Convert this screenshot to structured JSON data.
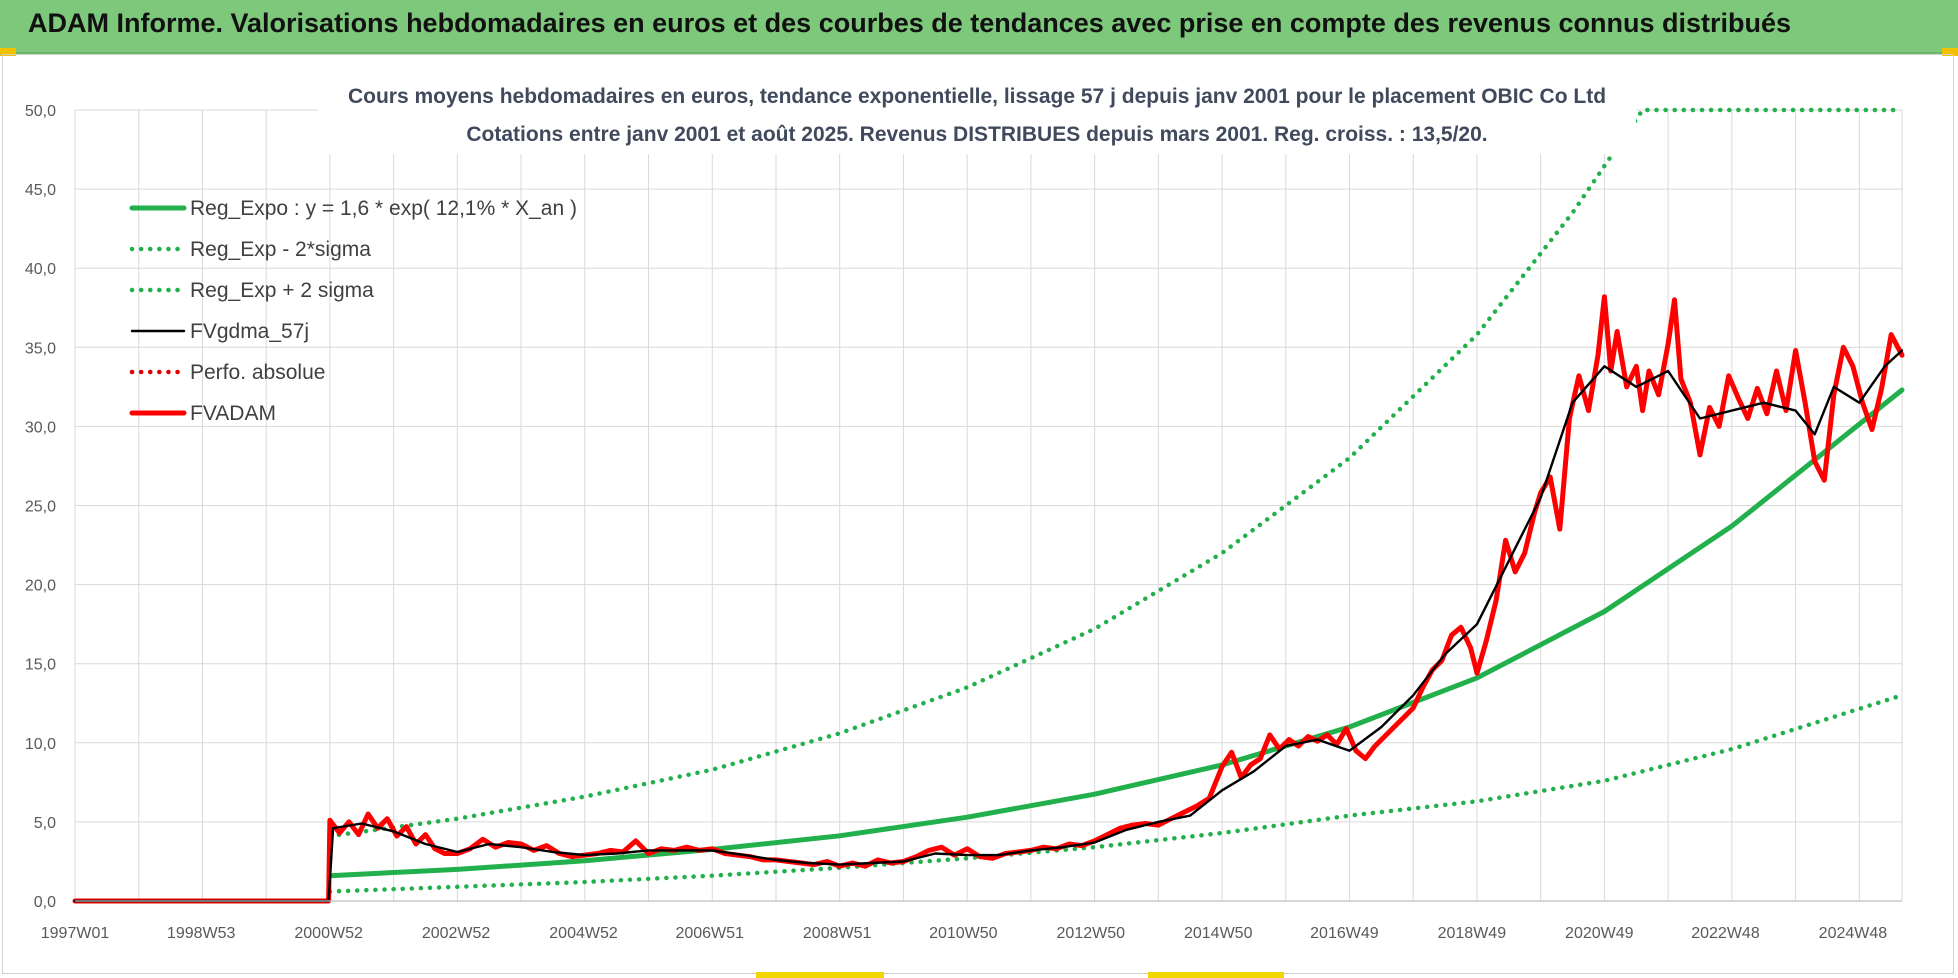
{
  "banner": {
    "title": "ADAM Informe. Valorisations hebdomadaires en euros et des courbes de tendances avec prise en compte des revenus connus distribués"
  },
  "colors": {
    "banner_bg": "#7dc87b",
    "trend_green": "#22b04c",
    "price_red": "#ff0000",
    "smooth_black": "#000000",
    "perf_red": "#e00000",
    "grid": "#d9d9d9",
    "title_text": "#404a5c"
  },
  "chart_data": {
    "type": "line",
    "title": "Cours moyens hebdomadaires en euros, tendance exponentielle, lissage 57 j depuis janv 2001  pour le placement OBIC Co Ltd",
    "subtitle": "Cotations entre janv 2001 et août 2025.  Revenus DISTRIBUES depuis mars 2001. Reg. croiss. : 13,5/20.",
    "xlabel": "",
    "ylabel": "",
    "xlim": [
      1997.0,
      2025.67
    ],
    "ylim": [
      0,
      50
    ],
    "grid": true,
    "legend_position": "top-left",
    "x_tick_labels": [
      {
        "x": 1997.0,
        "label": "1997W01"
      },
      {
        "x": 1998.98,
        "label": "1998W53"
      },
      {
        "x": 2000.98,
        "label": "2000W52"
      },
      {
        "x": 2002.98,
        "label": "2002W52"
      },
      {
        "x": 2004.98,
        "label": "2004W52"
      },
      {
        "x": 2006.96,
        "label": "2006W51"
      },
      {
        "x": 2008.96,
        "label": "2008W51"
      },
      {
        "x": 2010.94,
        "label": "2010W50"
      },
      {
        "x": 2012.94,
        "label": "2012W50"
      },
      {
        "x": 2014.94,
        "label": "2014W50"
      },
      {
        "x": 2016.92,
        "label": "2016W49"
      },
      {
        "x": 2018.92,
        "label": "2018W49"
      },
      {
        "x": 2020.92,
        "label": "2020W49"
      },
      {
        "x": 2022.9,
        "label": "2022W48"
      },
      {
        "x": 2024.9,
        "label": "2024W48"
      }
    ],
    "y_ticks": [
      0,
      5,
      10,
      15,
      20,
      25,
      30,
      35,
      40,
      45,
      50
    ],
    "y_tick_labels": [
      "0,0",
      "5,0",
      "10,0",
      "15,0",
      "20,0",
      "25,0",
      "30,0",
      "35,0",
      "40,0",
      "45,0",
      "50,0"
    ],
    "series": [
      {
        "name": "Reg_Expo : y = 1,6 * exp( 12,1% *  X_an )",
        "style": "solid-thick",
        "color": "#22b04c",
        "points": [
          [
            2001.0,
            1.6
          ],
          [
            2003.0,
            2.0
          ],
          [
            2005.0,
            2.55
          ],
          [
            2007.0,
            3.26
          ],
          [
            2009.0,
            4.12
          ],
          [
            2011.0,
            5.3
          ],
          [
            2013.0,
            6.75
          ],
          [
            2015.0,
            8.6
          ],
          [
            2017.0,
            11.0
          ],
          [
            2019.0,
            14.1
          ],
          [
            2021.0,
            18.3
          ],
          [
            2023.0,
            23.7
          ],
          [
            2025.67,
            32.3
          ]
        ]
      },
      {
        "name": "Reg_Exp - 2*sigma",
        "style": "dotted",
        "color": "#22b04c",
        "points": [
          [
            2001.0,
            0.6
          ],
          [
            2003.0,
            0.9
          ],
          [
            2005.0,
            1.2
          ],
          [
            2007.0,
            1.6
          ],
          [
            2009.0,
            2.1
          ],
          [
            2011.0,
            2.7
          ],
          [
            2013.0,
            3.4
          ],
          [
            2015.0,
            4.3
          ],
          [
            2017.0,
            5.4
          ],
          [
            2019.0,
            6.3
          ],
          [
            2021.0,
            7.6
          ],
          [
            2023.0,
            9.6
          ],
          [
            2025.67,
            13.0
          ]
        ]
      },
      {
        "name": "Reg_Exp + 2 sigma",
        "style": "dotted",
        "color": "#22b04c",
        "points": [
          [
            2001.0,
            4.1
          ],
          [
            2003.0,
            5.2
          ],
          [
            2005.0,
            6.6
          ],
          [
            2007.0,
            8.3
          ],
          [
            2009.0,
            10.6
          ],
          [
            2011.0,
            13.5
          ],
          [
            2013.0,
            17.2
          ],
          [
            2015.0,
            22.0
          ],
          [
            2017.0,
            28.0
          ],
          [
            2019.0,
            35.8
          ],
          [
            2020.5,
            43.5
          ],
          [
            2021.6,
            50.0
          ],
          [
            2025.67,
            50.0
          ]
        ]
      },
      {
        "name": "FVgdma_57j",
        "style": "solid",
        "color": "#000000",
        "points": [
          [
            1997.0,
            0
          ],
          [
            2000.98,
            0
          ],
          [
            2001.05,
            4.6
          ],
          [
            2001.5,
            4.9
          ],
          [
            2002.0,
            4.4
          ],
          [
            2002.5,
            3.6
          ],
          [
            2003.0,
            3.1
          ],
          [
            2003.5,
            3.6
          ],
          [
            2004.0,
            3.4
          ],
          [
            2004.5,
            3.1
          ],
          [
            2005.0,
            2.9
          ],
          [
            2005.5,
            3.0
          ],
          [
            2006.0,
            3.2
          ],
          [
            2006.5,
            3.2
          ],
          [
            2007.0,
            3.2
          ],
          [
            2007.5,
            2.9
          ],
          [
            2008.0,
            2.6
          ],
          [
            2008.5,
            2.4
          ],
          [
            2009.0,
            2.3
          ],
          [
            2009.5,
            2.4
          ],
          [
            2010.0,
            2.5
          ],
          [
            2010.5,
            3.0
          ],
          [
            2011.0,
            2.9
          ],
          [
            2011.5,
            2.9
          ],
          [
            2012.0,
            3.2
          ],
          [
            2012.5,
            3.4
          ],
          [
            2013.0,
            3.7
          ],
          [
            2013.5,
            4.5
          ],
          [
            2014.0,
            5.0
          ],
          [
            2014.5,
            5.4
          ],
          [
            2015.0,
            7.0
          ],
          [
            2015.5,
            8.2
          ],
          [
            2016.0,
            9.8
          ],
          [
            2016.5,
            10.2
          ],
          [
            2017.0,
            9.5
          ],
          [
            2017.5,
            11.0
          ],
          [
            2018.0,
            13.0
          ],
          [
            2018.5,
            15.6
          ],
          [
            2019.0,
            17.5
          ],
          [
            2019.5,
            21.5
          ],
          [
            2020.0,
            25.5
          ],
          [
            2020.5,
            31.5
          ],
          [
            2021.0,
            33.8
          ],
          [
            2021.5,
            32.5
          ],
          [
            2022.0,
            33.5
          ],
          [
            2022.5,
            30.5
          ],
          [
            2023.0,
            31.0
          ],
          [
            2023.5,
            31.5
          ],
          [
            2024.0,
            31.0
          ],
          [
            2024.3,
            29.5
          ],
          [
            2024.6,
            32.5
          ],
          [
            2025.0,
            31.5
          ],
          [
            2025.4,
            33.8
          ],
          [
            2025.67,
            34.8
          ]
        ]
      },
      {
        "name": "Perfo. absolue",
        "style": "dotted",
        "color": "#e00000",
        "points": []
      },
      {
        "name": "FVADAM",
        "style": "solid-thick",
        "color": "#ff0000",
        "points": [
          [
            1997.0,
            0
          ],
          [
            2000.98,
            0
          ],
          [
            2001.0,
            5.1
          ],
          [
            2001.15,
            4.3
          ],
          [
            2001.3,
            5.0
          ],
          [
            2001.45,
            4.2
          ],
          [
            2001.6,
            5.5
          ],
          [
            2001.75,
            4.6
          ],
          [
            2001.9,
            5.2
          ],
          [
            2002.05,
            4.1
          ],
          [
            2002.2,
            4.7
          ],
          [
            2002.35,
            3.6
          ],
          [
            2002.5,
            4.2
          ],
          [
            2002.65,
            3.3
          ],
          [
            2002.8,
            3.0
          ],
          [
            2003.0,
            3.0
          ],
          [
            2003.2,
            3.3
          ],
          [
            2003.4,
            3.9
          ],
          [
            2003.6,
            3.4
          ],
          [
            2003.8,
            3.7
          ],
          [
            2004.0,
            3.6
          ],
          [
            2004.2,
            3.2
          ],
          [
            2004.4,
            3.5
          ],
          [
            2004.6,
            3.0
          ],
          [
            2004.8,
            2.8
          ],
          [
            2005.0,
            2.9
          ],
          [
            2005.2,
            3.0
          ],
          [
            2005.4,
            3.2
          ],
          [
            2005.6,
            3.1
          ],
          [
            2005.8,
            3.8
          ],
          [
            2006.0,
            3.0
          ],
          [
            2006.2,
            3.3
          ],
          [
            2006.4,
            3.2
          ],
          [
            2006.6,
            3.4
          ],
          [
            2006.8,
            3.2
          ],
          [
            2007.0,
            3.3
          ],
          [
            2007.2,
            3.0
          ],
          [
            2007.4,
            2.9
          ],
          [
            2007.6,
            2.8
          ],
          [
            2007.8,
            2.6
          ],
          [
            2008.0,
            2.6
          ],
          [
            2008.2,
            2.5
          ],
          [
            2008.4,
            2.4
          ],
          [
            2008.6,
            2.3
          ],
          [
            2008.8,
            2.5
          ],
          [
            2009.0,
            2.2
          ],
          [
            2009.2,
            2.4
          ],
          [
            2009.4,
            2.2
          ],
          [
            2009.6,
            2.6
          ],
          [
            2009.8,
            2.4
          ],
          [
            2010.0,
            2.5
          ],
          [
            2010.2,
            2.8
          ],
          [
            2010.4,
            3.2
          ],
          [
            2010.6,
            3.4
          ],
          [
            2010.8,
            2.9
          ],
          [
            2011.0,
            3.3
          ],
          [
            2011.2,
            2.8
          ],
          [
            2011.4,
            2.7
          ],
          [
            2011.6,
            3.0
          ],
          [
            2011.8,
            3.1
          ],
          [
            2012.0,
            3.2
          ],
          [
            2012.2,
            3.4
          ],
          [
            2012.4,
            3.3
          ],
          [
            2012.6,
            3.6
          ],
          [
            2012.8,
            3.5
          ],
          [
            2013.0,
            3.8
          ],
          [
            2013.2,
            4.2
          ],
          [
            2013.4,
            4.6
          ],
          [
            2013.6,
            4.8
          ],
          [
            2013.8,
            4.9
          ],
          [
            2014.0,
            4.8
          ],
          [
            2014.2,
            5.2
          ],
          [
            2014.4,
            5.6
          ],
          [
            2014.6,
            6.0
          ],
          [
            2014.8,
            6.5
          ],
          [
            2015.0,
            8.5
          ],
          [
            2015.15,
            9.4
          ],
          [
            2015.3,
            7.8
          ],
          [
            2015.45,
            8.6
          ],
          [
            2015.6,
            9.0
          ],
          [
            2015.75,
            10.5
          ],
          [
            2015.9,
            9.6
          ],
          [
            2016.05,
            10.2
          ],
          [
            2016.2,
            9.8
          ],
          [
            2016.35,
            10.4
          ],
          [
            2016.5,
            10.1
          ],
          [
            2016.65,
            10.5
          ],
          [
            2016.8,
            9.9
          ],
          [
            2016.95,
            10.9
          ],
          [
            2017.1,
            9.5
          ],
          [
            2017.25,
            9.0
          ],
          [
            2017.4,
            9.8
          ],
          [
            2017.55,
            10.4
          ],
          [
            2017.7,
            11.0
          ],
          [
            2017.85,
            11.6
          ],
          [
            2018.0,
            12.2
          ],
          [
            2018.15,
            13.5
          ],
          [
            2018.3,
            14.6
          ],
          [
            2018.45,
            15.2
          ],
          [
            2018.6,
            16.8
          ],
          [
            2018.75,
            17.3
          ],
          [
            2018.9,
            16.0
          ],
          [
            2019.0,
            14.4
          ],
          [
            2019.15,
            16.5
          ],
          [
            2019.3,
            19.0
          ],
          [
            2019.45,
            22.8
          ],
          [
            2019.6,
            20.8
          ],
          [
            2019.75,
            22.0
          ],
          [
            2019.9,
            24.5
          ],
          [
            2020.0,
            25.8
          ],
          [
            2020.15,
            26.8
          ],
          [
            2020.3,
            23.5
          ],
          [
            2020.45,
            30.5
          ],
          [
            2020.6,
            33.2
          ],
          [
            2020.75,
            31.0
          ],
          [
            2020.9,
            34.5
          ],
          [
            2021.0,
            38.2
          ],
          [
            2021.1,
            33.5
          ],
          [
            2021.2,
            36.0
          ],
          [
            2021.35,
            32.5
          ],
          [
            2021.5,
            33.8
          ],
          [
            2021.6,
            31.0
          ],
          [
            2021.7,
            33.5
          ],
          [
            2021.85,
            32.0
          ],
          [
            2022.0,
            35.2
          ],
          [
            2022.1,
            38.0
          ],
          [
            2022.2,
            33.0
          ],
          [
            2022.35,
            31.5
          ],
          [
            2022.5,
            28.2
          ],
          [
            2022.65,
            31.2
          ],
          [
            2022.8,
            30.0
          ],
          [
            2022.95,
            33.2
          ],
          [
            2023.1,
            31.8
          ],
          [
            2023.25,
            30.5
          ],
          [
            2023.4,
            32.4
          ],
          [
            2023.55,
            30.8
          ],
          [
            2023.7,
            33.5
          ],
          [
            2023.85,
            31.0
          ],
          [
            2024.0,
            34.8
          ],
          [
            2024.15,
            31.5
          ],
          [
            2024.3,
            27.8
          ],
          [
            2024.45,
            26.6
          ],
          [
            2024.6,
            32.0
          ],
          [
            2024.75,
            35.0
          ],
          [
            2024.9,
            33.8
          ],
          [
            2025.05,
            31.5
          ],
          [
            2025.2,
            29.8
          ],
          [
            2025.35,
            32.4
          ],
          [
            2025.5,
            35.8
          ],
          [
            2025.67,
            34.5
          ]
        ]
      }
    ]
  }
}
